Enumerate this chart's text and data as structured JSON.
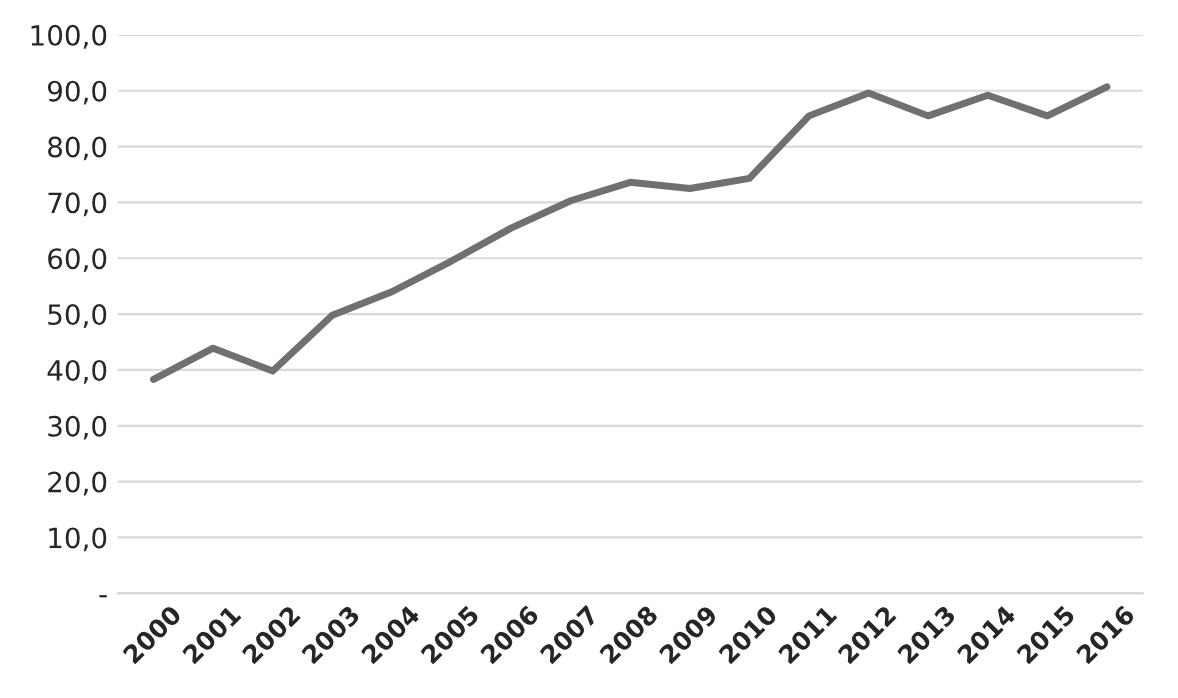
{
  "chart_data": {
    "type": "line",
    "categories": [
      "2000",
      "2001",
      "2002",
      "2003",
      "2004",
      "2005",
      "2006",
      "2007",
      "2008",
      "2009",
      "2010",
      "2011",
      "2012",
      "2013",
      "2014",
      "2015",
      "2016"
    ],
    "series": [
      {
        "color": "#707070",
        "values": [
          38.3,
          43.9,
          39.8,
          49.8,
          54,
          59.5,
          65.4,
          70.3,
          73.6,
          72.5,
          74.3,
          85.5,
          89.6,
          85.5,
          89.2,
          85.5,
          90.7
        ]
      }
    ],
    "ylim": [
      0,
      100
    ],
    "yticks": [
      {
        "value": 0,
        "label": "-"
      },
      {
        "value": 10,
        "label": "10,0"
      },
      {
        "value": 20,
        "label": "20,0"
      },
      {
        "value": 30,
        "label": "30,0"
      },
      {
        "value": 40,
        "label": "40,0"
      },
      {
        "value": 50,
        "label": "50,0"
      },
      {
        "value": 60,
        "label": "60,0"
      },
      {
        "value": 70,
        "label": "70,0"
      },
      {
        "value": 80,
        "label": "80,0"
      },
      {
        "value": 90,
        "label": "90,0"
      },
      {
        "value": 100,
        "label": "100,0"
      }
    ],
    "grid": "y",
    "legend": false,
    "marker": "none",
    "line_style": "solid"
  }
}
